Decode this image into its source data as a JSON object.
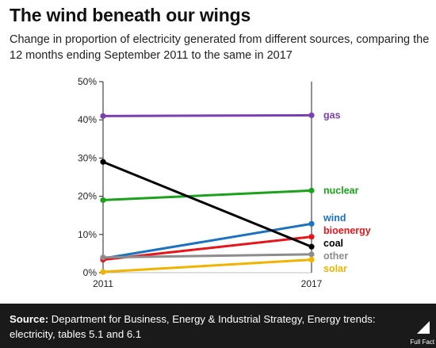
{
  "header": {
    "title": "The wind beneath our wings",
    "subtitle": "Change in proportion of electricity generated from different sources, comparing the 12 months ending September 2011 to the same in 2017"
  },
  "chart_data": {
    "type": "line",
    "x": [
      "2011",
      "2017"
    ],
    "y_ticks": [
      "0%",
      "10%",
      "20%",
      "30%",
      "40%",
      "50%"
    ],
    "ylim": [
      0,
      50
    ],
    "unit": "%",
    "grid": false,
    "legend": "direct labels at right end of lines",
    "series": [
      {
        "name": "gas",
        "values": [
          41,
          41.2
        ],
        "color": "#7b3fb3"
      },
      {
        "name": "nuclear",
        "values": [
          19,
          21.5
        ],
        "color": "#1aa31a"
      },
      {
        "name": "wind",
        "values": [
          3.7,
          12.8
        ],
        "color": "#1a72c0"
      },
      {
        "name": "bioenergy",
        "values": [
          3.4,
          9.4
        ],
        "color": "#e8141a"
      },
      {
        "name": "coal",
        "values": [
          29,
          6.8
        ],
        "color": "#000000"
      },
      {
        "name": "other",
        "values": [
          4.0,
          4.8
        ],
        "color": "#8c8c8c"
      },
      {
        "name": "solar",
        "values": [
          0.2,
          3.4
        ],
        "color": "#f0b400"
      }
    ]
  },
  "footer": {
    "source_label": "Source:",
    "source_text": "Department for Business, Energy & Industrial Strategy, Energy trends: electricity, tables 5.1 and 6.1",
    "logo_text": "Full Fact"
  }
}
